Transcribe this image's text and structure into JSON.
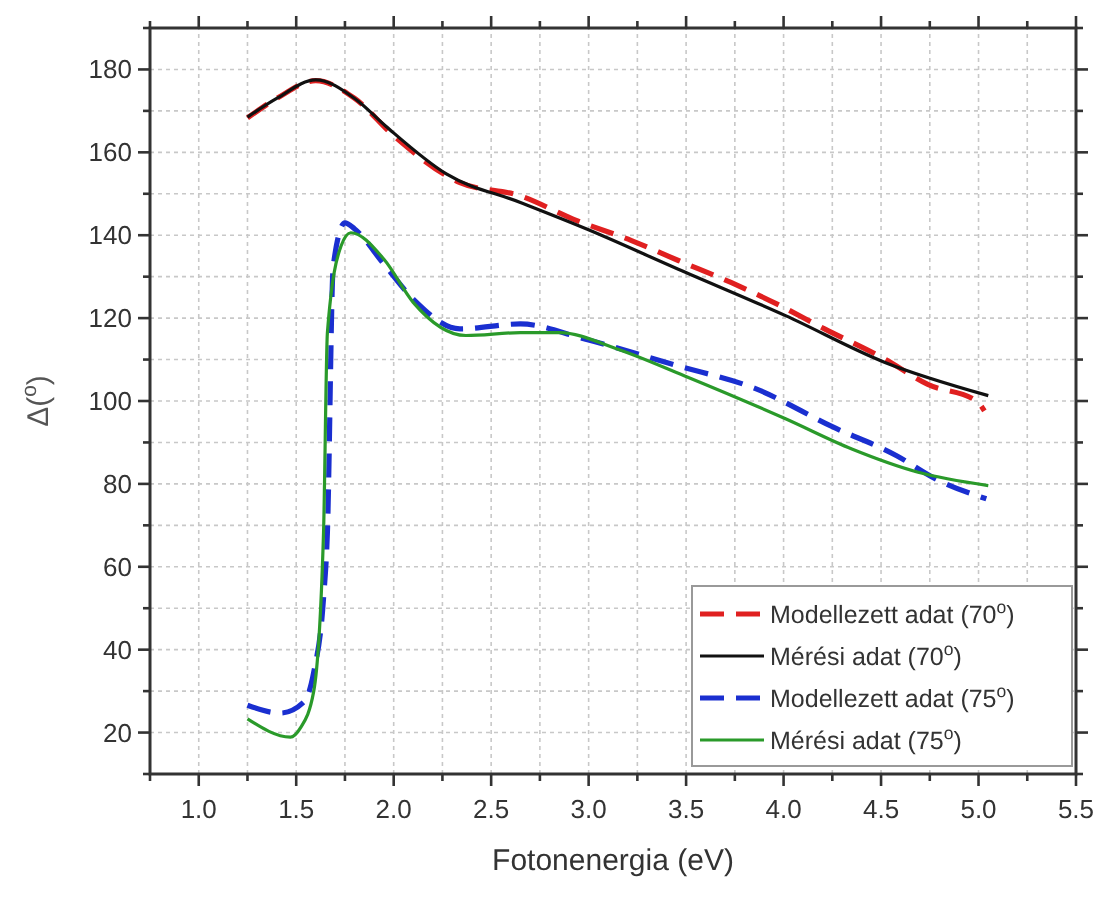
{
  "chart_data": {
    "type": "line",
    "xlabel": "Fotonenergia (eV)",
    "ylabel": "Δ($^{o}$)",
    "xlim": [
      0.75,
      5.5
    ],
    "ylim": [
      10,
      190
    ],
    "xticks": [
      {
        "value": 0.75,
        "label": null
      },
      {
        "value": 1.0,
        "label": "1.0"
      },
      {
        "value": 1.25,
        "label": null
      },
      {
        "value": 1.5,
        "label": "1.5"
      },
      {
        "value": 1.75,
        "label": null
      },
      {
        "value": 2.0,
        "label": "2.0"
      },
      {
        "value": 2.25,
        "label": null
      },
      {
        "value": 2.5,
        "label": "2.5"
      },
      {
        "value": 2.75,
        "label": null
      },
      {
        "value": 3.0,
        "label": "3.0"
      },
      {
        "value": 3.25,
        "label": null
      },
      {
        "value": 3.5,
        "label": "3.5"
      },
      {
        "value": 3.75,
        "label": null
      },
      {
        "value": 4.0,
        "label": "4.0"
      },
      {
        "value": 4.25,
        "label": null
      },
      {
        "value": 4.5,
        "label": "4.5"
      },
      {
        "value": 4.75,
        "label": null
      },
      {
        "value": 5.0,
        "label": "5.0"
      },
      {
        "value": 5.25,
        "label": null
      },
      {
        "value": 5.5,
        "label": "5.5"
      }
    ],
    "yticks": [
      {
        "value": 10,
        "label": null
      },
      20,
      {
        "value": 30,
        "label": null
      },
      40,
      {
        "value": 50,
        "label": null
      },
      60,
      {
        "value": 70,
        "label": null
      },
      80,
      {
        "value": 90,
        "label": null
      },
      100,
      {
        "value": 110,
        "label": null
      },
      120,
      {
        "value": 130,
        "label": null
      },
      140,
      {
        "value": 150,
        "label": null
      },
      160,
      {
        "value": 170,
        "label": null
      },
      180,
      {
        "value": 190,
        "label": null
      }
    ],
    "grid": true,
    "legend": "bottom right",
    "series": [
      {
        "name": "Modellezett adat (70$^{o}$)",
        "color": "#e02020",
        "line_style": "dashed",
        "x": [
          1.25,
          1.4,
          1.6,
          1.8,
          2.0,
          2.34,
          2.65,
          2.92,
          3.22,
          3.46,
          3.73,
          3.97,
          4.21,
          4.52,
          4.74,
          4.99,
          5.03
        ],
        "values": [
          168.3,
          173,
          177.3,
          173,
          164,
          152.7,
          149.5,
          143.9,
          138.7,
          133.9,
          128.6,
          123.3,
          117.4,
          110.1,
          104,
          100,
          97.6
        ]
      },
      {
        "name": "Mérési adat (70$^{o}$)",
        "color": "#111111",
        "line_style": "solid",
        "x": [
          1.25,
          1.4,
          1.6,
          1.8,
          1.96,
          2.27,
          2.65,
          2.99,
          3.46,
          4.01,
          4.52,
          5.05
        ],
        "values": [
          168.5,
          173,
          177.5,
          173,
          166.3,
          154.8,
          147.9,
          141.5,
          131.8,
          120.6,
          109.3,
          101.3
        ]
      },
      {
        "name": "Modellezett adat (75$^{o}$)",
        "color": "#1a2fd0",
        "line_style": "dashed",
        "x": [
          1.25,
          1.42,
          1.54,
          1.59,
          1.64,
          1.66,
          1.69,
          1.75,
          1.8,
          1.95,
          2.1,
          2.34,
          2.65,
          2.97,
          3.44,
          3.85,
          4.25,
          4.58,
          4.78,
          5.04
        ],
        "values": [
          26.6,
          24.7,
          27.4,
          34.6,
          52.3,
          68.3,
          132.6,
          143,
          141.5,
          133,
          124.6,
          117.4,
          118.6,
          115.1,
          108.7,
          103.1,
          93.8,
          86.8,
          81.2,
          76.4
        ]
      },
      {
        "name": "Mérési adat (75$^{o}$)",
        "color": "#2a9a2a",
        "line_style": "solid",
        "x": [
          1.25,
          1.47,
          1.52,
          1.59,
          1.64,
          1.66,
          1.73,
          1.78,
          1.95,
          2.1,
          2.37,
          2.65,
          2.85,
          3.15,
          3.49,
          4.01,
          4.35,
          4.69,
          5.05
        ],
        "values": [
          23.3,
          18.9,
          21,
          30,
          68,
          116.5,
          137.4,
          140.6,
          134.2,
          123.8,
          115.8,
          116.5,
          116.5,
          112.5,
          106.1,
          95.7,
          88.4,
          82.8,
          79.6
        ]
      }
    ]
  }
}
